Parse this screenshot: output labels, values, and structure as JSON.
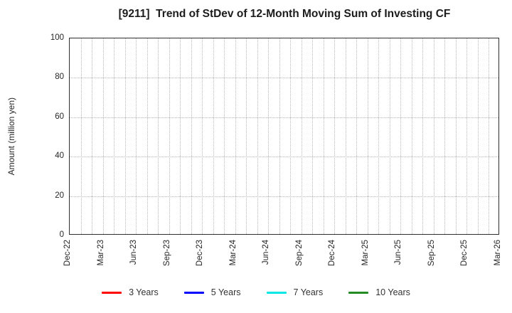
{
  "chart_data": {
    "type": "line",
    "title": "[9211]  Trend of StDev of 12-Month Moving Sum of Investing CF",
    "ylabel": "Amount (million yen)",
    "ylim": [
      0,
      100
    ],
    "yticks": [
      0,
      20,
      40,
      60,
      80,
      100
    ],
    "x_tick_labels": [
      "Dec-22",
      "Mar-23",
      "Jun-23",
      "Sep-23",
      "Dec-23",
      "Mar-24",
      "Jun-24",
      "Sep-24",
      "Dec-24",
      "Mar-25",
      "Jun-25",
      "Sep-25",
      "Dec-25",
      "Mar-26"
    ],
    "months_per_labeled_tick": 3,
    "total_months": 39,
    "grid": true,
    "legend_position": "bottom",
    "plot_is_empty_no_data_drawn": true,
    "series": [
      {
        "name": "3 Years",
        "color": "#ff0000",
        "values": []
      },
      {
        "name": "5 Years",
        "color": "#0000ff",
        "values": []
      },
      {
        "name": "7 Years",
        "color": "#00e5e5",
        "values": []
      },
      {
        "name": "10 Years",
        "color": "#228b22",
        "values": []
      }
    ]
  }
}
